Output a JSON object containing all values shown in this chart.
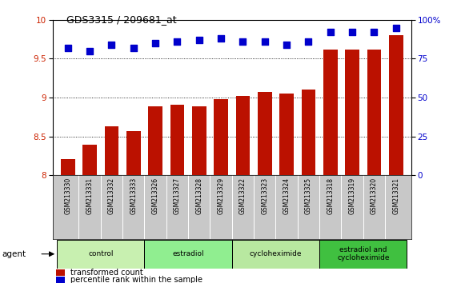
{
  "title": "GDS3315 / 209681_at",
  "samples": [
    "GSM213330",
    "GSM213331",
    "GSM213332",
    "GSM213333",
    "GSM213326",
    "GSM213327",
    "GSM213328",
    "GSM213329",
    "GSM213322",
    "GSM213323",
    "GSM213324",
    "GSM213325",
    "GSM213318",
    "GSM213319",
    "GSM213320",
    "GSM213321"
  ],
  "bar_values": [
    8.21,
    8.4,
    8.63,
    8.57,
    8.89,
    8.91,
    8.89,
    8.98,
    9.02,
    9.07,
    9.05,
    9.1,
    9.62,
    9.62,
    9.62,
    9.8
  ],
  "dot_values": [
    82,
    80,
    84,
    82,
    85,
    86,
    87,
    88,
    86,
    86,
    84,
    86,
    92,
    92,
    92,
    95
  ],
  "groups": [
    {
      "label": "control",
      "start": 0,
      "end": 4,
      "color": "#c8f0b0"
    },
    {
      "label": "estradiol",
      "start": 4,
      "end": 8,
      "color": "#90ee90"
    },
    {
      "label": "cycloheximide",
      "start": 8,
      "end": 12,
      "color": "#b8e8a0"
    },
    {
      "label": "estradiol and\ncycloheximide",
      "start": 12,
      "end": 16,
      "color": "#40c040"
    }
  ],
  "bar_color": "#bb1100",
  "dot_color": "#0000cc",
  "ylim_left": [
    8.0,
    10.0
  ],
  "ylim_right": [
    0,
    100
  ],
  "yticks_left": [
    8.0,
    8.5,
    9.0,
    9.5,
    10.0
  ],
  "yticks_left_labels": [
    "8",
    "8.5",
    "9",
    "9.5",
    "10"
  ],
  "yticks_right": [
    0,
    25,
    50,
    75,
    100
  ],
  "yticks_right_labels": [
    "0",
    "25",
    "50",
    "75",
    "100%"
  ],
  "background_color": "#ffffff",
  "plot_bg_color": "#ffffff",
  "agent_label": "agent",
  "legend_bar_label": "transformed count",
  "legend_dot_label": "percentile rank within the sample",
  "tick_label_color_left": "#cc2200",
  "tick_label_color_right": "#0000cc",
  "dotted_grid_values": [
    8.5,
    9.0,
    9.5
  ],
  "bar_width": 0.65,
  "dot_size": 40,
  "sample_label_color": "#333333",
  "gray_bg": "#c8c8c8"
}
